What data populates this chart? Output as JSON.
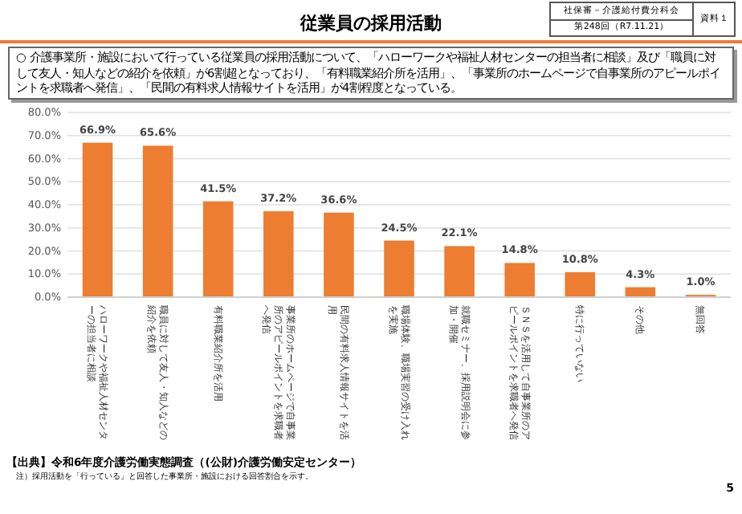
{
  "chart_data": {
    "type": "bar",
    "title": "従業員の採用活動",
    "subtitle": "○ 介護事業所・施設において行っている従業員の採用活動について、「ハローワークや福祉人材センターの担当者に相談」及び「職員に対して友人・知人などの紹介を依頼」が6割超となっており、「有料職業紹介所を活用」、「事業所のホームページで自事業所のアピールポイントを求職者へ発信」、「民間の有料求人情報サイトを活用」が4割程度となっている。",
    "categories": [
      "ハローワークや福祉人材センターの担当者に相談",
      "職員に対して友人・知人などの紹介を依頼",
      "有料職業紹介所を活用",
      "事業所のホームページで自事業所のアピールポイントを求職者へ発信",
      "民間の有料求人情報サイトを活用",
      "職場体験、職場実習の受け入れを実施",
      "就職セミナー、採用説明会に参加・開催",
      "ＳＮＳを活用して自事業所のアピールポイントを求職者へ発信",
      "特に行っていない",
      "その他",
      "無回答"
    ],
    "values": [
      66.9,
      65.6,
      41.5,
      37.2,
      36.6,
      24.5,
      22.1,
      14.8,
      10.8,
      4.3,
      1.0
    ],
    "value_labels": [
      "66.9%",
      "65.6%",
      "41.5%",
      "37.2%",
      "36.6%",
      "24.5%",
      "22.1%",
      "14.8%",
      "10.8%",
      "4.3%",
      "1.0%"
    ],
    "color": "#ed7d31",
    "ylim": [
      0,
      80
    ],
    "yticks": [
      {
        "value": 0,
        "label": "0.0%"
      },
      {
        "value": 10,
        "label": "10.0%"
      },
      {
        "value": 20,
        "label": "20.0%"
      },
      {
        "value": 30,
        "label": "30.0%"
      },
      {
        "value": 40,
        "label": "40.0%"
      },
      {
        "value": 50,
        "label": "50.0%"
      },
      {
        "value": 60,
        "label": "60.0%"
      },
      {
        "value": 70,
        "label": "70.0%"
      },
      {
        "value": 80,
        "label": "80.0%"
      }
    ],
    "grid": "y",
    "annotations": [
      "社保審－介護給付費分科会",
      "第248回（R7.11.21）",
      "資料１",
      "【出典】令和6年度介護労働実態調査（(公財)介護労働安定センター）",
      "注）採用活動を「行っている」と回答した事業所・施設における回答割合を示す。",
      "5"
    ]
  }
}
